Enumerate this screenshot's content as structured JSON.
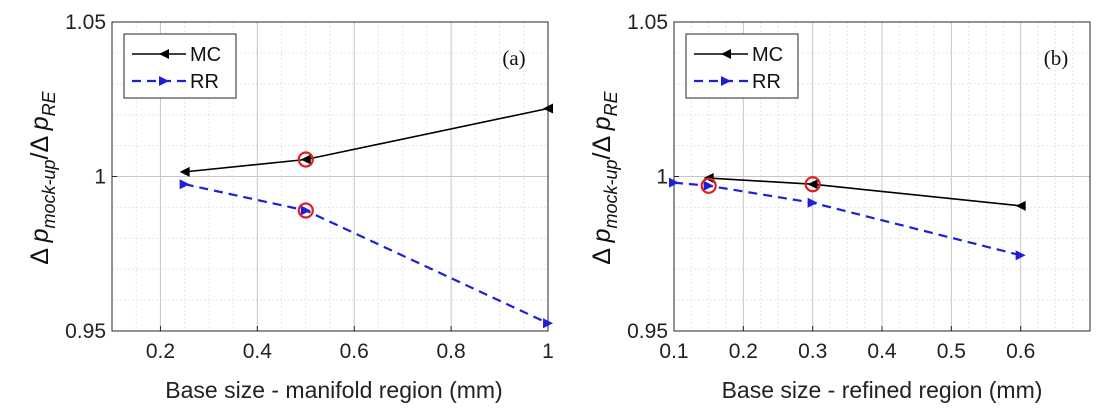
{
  "figure": {
    "ylabel": {
      "delta1": "Δ",
      "p1": "p",
      "sub1": "mock-up",
      "slash": "/",
      "delta2": "Δ",
      "p2": "p",
      "sub2": "RE"
    }
  },
  "chart_data": [
    {
      "type": "line",
      "panel_tag": "(a)",
      "xlabel": "Base size - manifold region (mm)",
      "xlim": [
        0.1,
        1.0
      ],
      "ylim": [
        0.95,
        1.05
      ],
      "xticks": [
        "0.2",
        "0.4",
        "0.6",
        "0.8",
        "1"
      ],
      "xtick_values": [
        0.2,
        0.4,
        0.6,
        0.8,
        1.0
      ],
      "yticks": [
        "0.95",
        "1",
        "1.05"
      ],
      "ytick_values": [
        0.95,
        1.0,
        1.05
      ],
      "grid": true,
      "legend_position": "top-left",
      "series": [
        {
          "name": "MC",
          "color": "#000000",
          "dash": "solid",
          "marker": "triangle-left",
          "x": [
            0.25,
            0.5,
            1.0
          ],
          "y": [
            1.0015,
            1.0055,
            1.022
          ]
        },
        {
          "name": "RR",
          "color": "#1f1fd6",
          "dash": "dashed",
          "marker": "triangle-right",
          "x": [
            0.25,
            0.5,
            1.0
          ],
          "y": [
            0.9975,
            0.989,
            0.9525
          ]
        }
      ],
      "highlighted_points": [
        {
          "x": 0.5,
          "y": 1.0055,
          "color": "#e02020"
        },
        {
          "x": 0.5,
          "y": 0.989,
          "color": "#e02020"
        }
      ]
    },
    {
      "type": "line",
      "panel_tag": "(b)",
      "xlabel": "Base size - refined region (mm)",
      "xlim": [
        0.1,
        0.7
      ],
      "ylim": [
        0.95,
        1.05
      ],
      "xticks": [
        "0.1",
        "0.2",
        "0.3",
        "0.4",
        "0.5",
        "0.6"
      ],
      "xtick_values": [
        0.1,
        0.2,
        0.3,
        0.4,
        0.5,
        0.6
      ],
      "yticks": [
        "0.95",
        "1",
        "1.05"
      ],
      "ytick_values": [
        0.95,
        1.0,
        1.05
      ],
      "grid": true,
      "legend_position": "top-left",
      "series": [
        {
          "name": "MC",
          "color": "#000000",
          "dash": "solid",
          "marker": "triangle-left",
          "x": [
            0.15,
            0.3,
            0.6
          ],
          "y": [
            0.9995,
            0.9975,
            0.9905
          ]
        },
        {
          "name": "RR",
          "color": "#1f1fd6",
          "dash": "dashed",
          "marker": "triangle-right",
          "x": [
            0.1,
            0.15,
            0.3,
            0.6
          ],
          "y": [
            0.998,
            0.997,
            0.9915,
            0.9745
          ]
        }
      ],
      "highlighted_points": [
        {
          "x": 0.3,
          "y": 0.9975,
          "color": "#e02020"
        },
        {
          "x": 0.15,
          "y": 0.997,
          "color": "#e02020"
        }
      ]
    }
  ]
}
